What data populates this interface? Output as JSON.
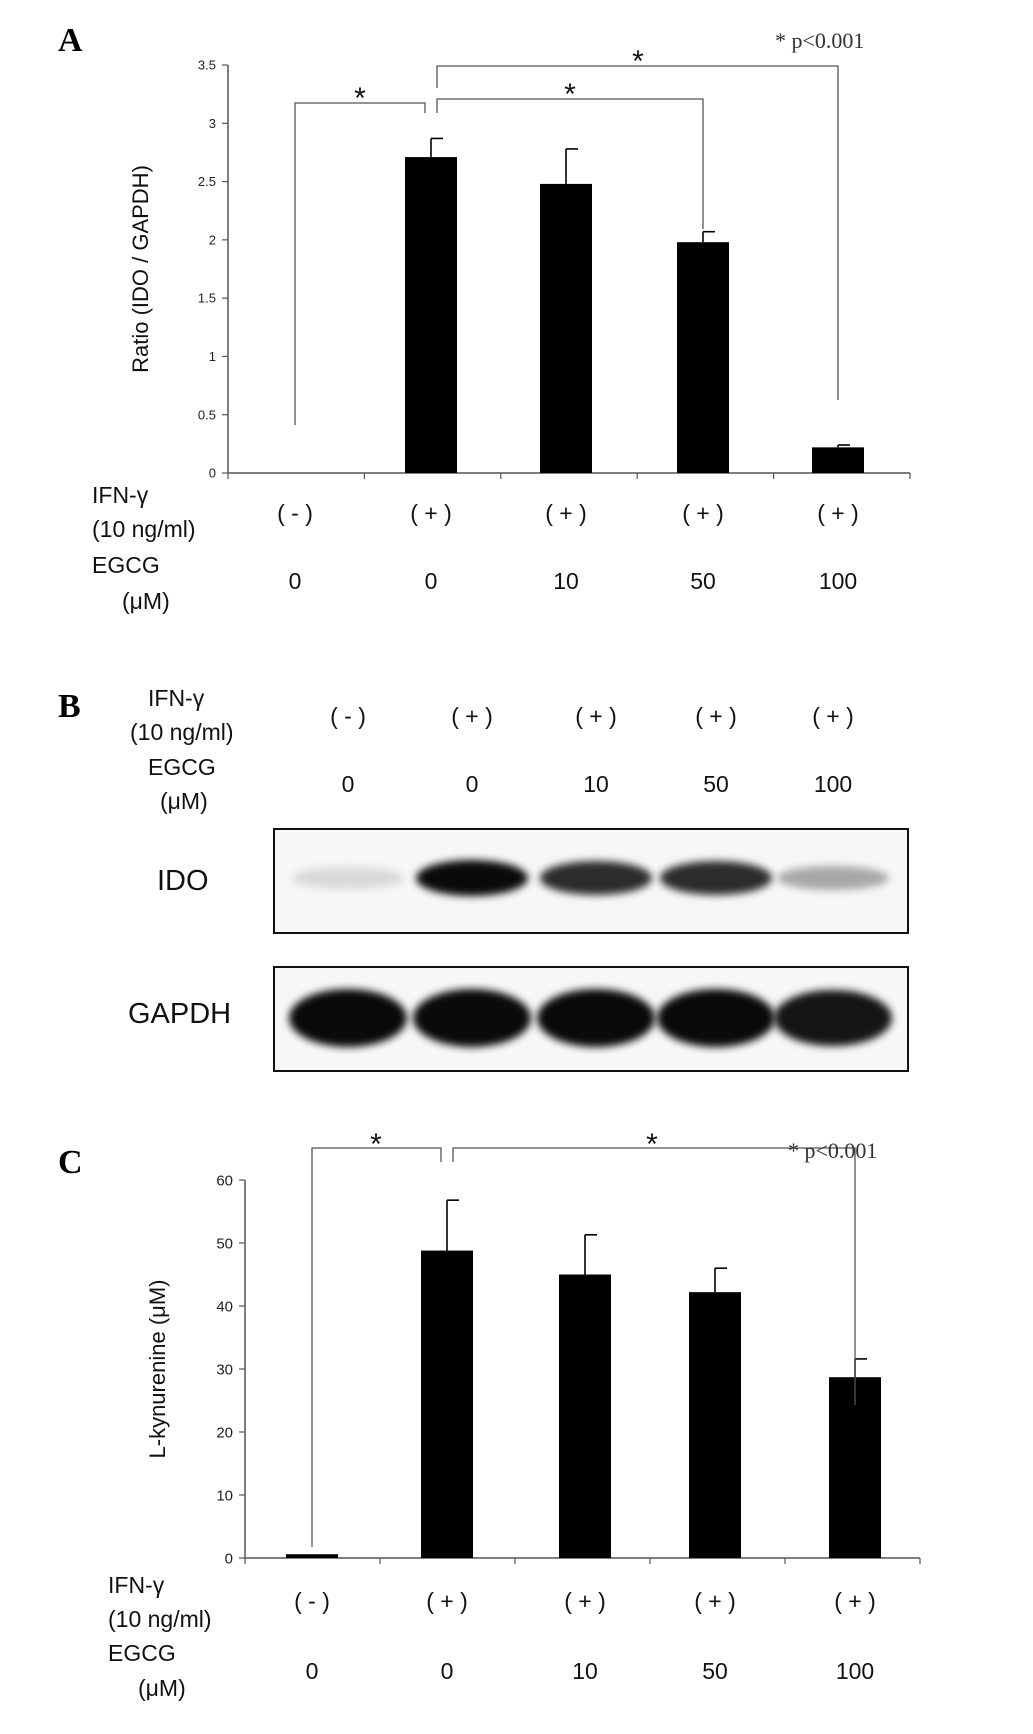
{
  "panels": {
    "A": {
      "letter": "A",
      "pvalue": "* p<0.001",
      "star_symbol": "*",
      "row1_label_line1": "IFN-γ",
      "row1_label_line2": "(10 ng/ml)",
      "row2_label_line1": "EGCG",
      "row2_label_line2": "(μM)",
      "ifn": [
        "( - )",
        "( + )",
        "( + )",
        "( + )",
        "( + )"
      ],
      "egcg": [
        "0",
        "0",
        "10",
        "50",
        "100"
      ]
    },
    "B": {
      "letter": "B",
      "row1_label_line1": "IFN-γ",
      "row1_label_line2": "(10 ng/ml)",
      "row2_label_line1": "EGCG",
      "row2_label_line2": "(μM)",
      "ifn": [
        "( - )",
        "( + )",
        "( + )",
        "( + )",
        "( + )"
      ],
      "egcg": [
        "0",
        "0",
        "10",
        "50",
        "100"
      ],
      "blot1_label": "IDO",
      "blot2_label": "GAPDH",
      "ido_intensity": [
        0.08,
        1.0,
        0.85,
        0.85,
        0.3
      ],
      "gapdh_intensity": [
        1.0,
        1.0,
        1.0,
        1.0,
        0.95
      ]
    },
    "C": {
      "letter": "C",
      "pvalue": "* p<0.001",
      "star_symbol": "*",
      "row1_label_line1": "IFN-γ",
      "row1_label_line2": "(10 ng/ml)",
      "row2_label_line1": "EGCG",
      "row2_label_line2": "(μM)",
      "ifn": [
        "( - )",
        "( + )",
        "( + )",
        "( + )",
        "( + )"
      ],
      "egcg": [
        "0",
        "0",
        "10",
        "50",
        "100"
      ]
    }
  },
  "chart_data": [
    {
      "type": "bar",
      "panel": "A",
      "ylabel": "Ratio (IDO / GAPDH)",
      "categories": [
        "IFN-γ (-) / EGCG 0",
        "IFN-γ (+) / EGCG 0",
        "IFN-γ (+) / EGCG 10",
        "IFN-γ (+) / EGCG 50",
        "IFN-γ (+) / EGCG 100"
      ],
      "values": [
        0,
        2.71,
        2.48,
        1.98,
        0.22
      ],
      "errors": [
        0,
        0.16,
        0.3,
        0.09,
        0.02
      ],
      "ylim": [
        0,
        3.5
      ],
      "yticks": [
        "0",
        "0.5",
        "1",
        "1.5",
        "2",
        "2.5",
        "3",
        "3.5"
      ],
      "significance": [
        {
          "from": 0,
          "to": 1,
          "label": "*"
        },
        {
          "from": 1,
          "to": 3,
          "label": "*"
        },
        {
          "from": 1,
          "to": 4,
          "label": "*"
        }
      ],
      "color": "#000000"
    },
    {
      "type": "bar",
      "panel": "C",
      "ylabel": "L-kynurenine (μM)",
      "categories": [
        "IFN-γ (-) / EGCG 0",
        "IFN-γ (+) / EGCG 0",
        "IFN-γ (+) / EGCG 10",
        "IFN-γ (+) / EGCG 50",
        "IFN-γ (+) / EGCG 100"
      ],
      "values": [
        0.6,
        48.8,
        45.0,
        42.2,
        28.7
      ],
      "errors": [
        0,
        8.0,
        6.3,
        3.8,
        2.9
      ],
      "ylim": [
        0,
        60
      ],
      "yticks": [
        "0",
        "10",
        "20",
        "30",
        "40",
        "50",
        "60"
      ],
      "significance": [
        {
          "from": 0,
          "to": 1,
          "label": "*"
        },
        {
          "from": 1,
          "to": 4,
          "label": "*"
        }
      ],
      "color": "#000000"
    }
  ]
}
